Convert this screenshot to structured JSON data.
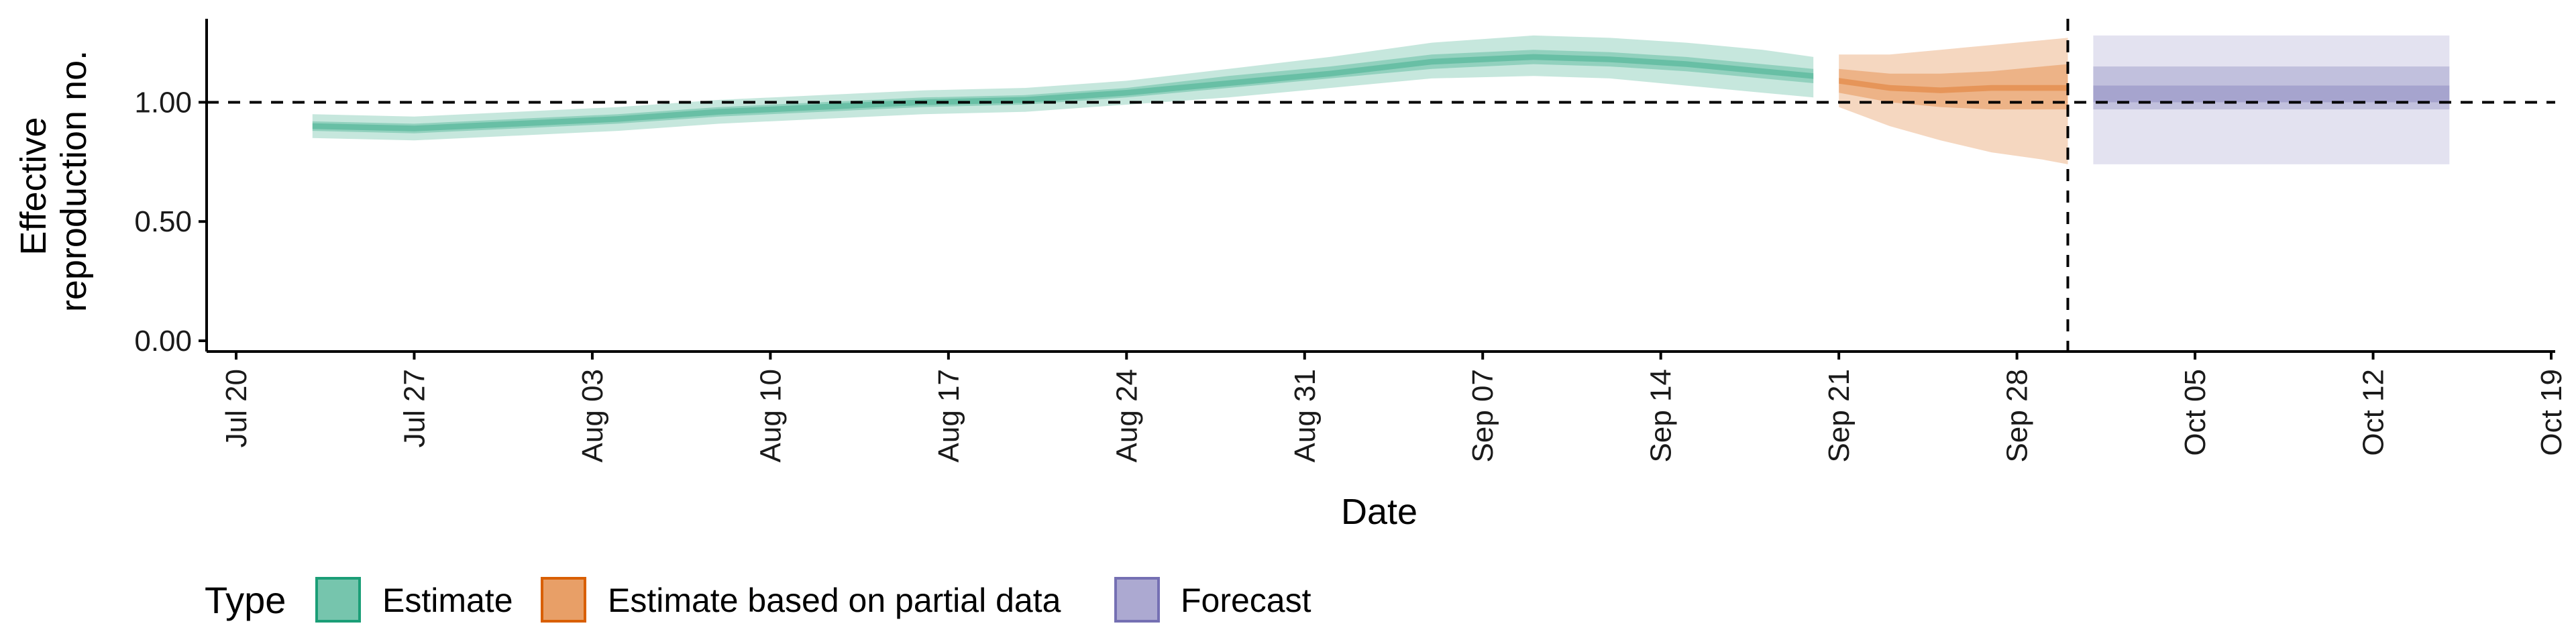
{
  "chart_data": {
    "type": "area",
    "xlabel": "Date",
    "ylabel_lines": [
      "Effective",
      "reproduction no."
    ],
    "x_range": [
      "2020-07-20",
      "2020-10-19"
    ],
    "ylim": [
      0,
      1.35
    ],
    "x_ticks": [
      "Jul 20",
      "Jul 27",
      "Aug 03",
      "Aug 10",
      "Aug 17",
      "Aug 24",
      "Aug 31",
      "Sep 07",
      "Sep 14",
      "Sep 21",
      "Sep 28",
      "Oct 05",
      "Oct 12",
      "Oct 19"
    ],
    "y_ticks": [
      "0.00",
      "0.50",
      "1.00"
    ],
    "y_tick_values": [
      0,
      0.5,
      1.0
    ],
    "reference_lines": {
      "horizontal_y": 1.0,
      "vertical_date": "2020-09-30"
    },
    "legend": {
      "title": "Type",
      "position": "bottom-left",
      "items": [
        {
          "label": "Estimate",
          "color": "#1b9e77"
        },
        {
          "label": "Estimate based on partial data",
          "color": "#d95f02"
        },
        {
          "label": "Forecast",
          "color": "#7570b3"
        }
      ]
    },
    "series": [
      {
        "name": "Estimate",
        "color": "#1b9e77",
        "style": "ribbon",
        "dates": [
          "2020-07-23",
          "2020-07-27",
          "2020-07-31",
          "2020-08-04",
          "2020-08-08",
          "2020-08-12",
          "2020-08-16",
          "2020-08-20",
          "2020-08-24",
          "2020-08-28",
          "2020-09-01",
          "2020-09-05",
          "2020-09-09",
          "2020-09-12",
          "2020-09-15",
          "2020-09-18",
          "2020-09-20"
        ],
        "median": [
          0.9,
          0.89,
          0.91,
          0.93,
          0.96,
          0.98,
          1.0,
          1.01,
          1.04,
          1.08,
          1.12,
          1.17,
          1.19,
          1.18,
          1.16,
          1.13,
          1.11
        ],
        "lower_outer": [
          0.85,
          0.84,
          0.86,
          0.88,
          0.91,
          0.93,
          0.95,
          0.96,
          0.99,
          1.02,
          1.06,
          1.1,
          1.11,
          1.1,
          1.07,
          1.04,
          1.02
        ],
        "upper_outer": [
          0.95,
          0.94,
          0.96,
          0.98,
          1.01,
          1.03,
          1.05,
          1.06,
          1.09,
          1.14,
          1.19,
          1.25,
          1.28,
          1.27,
          1.25,
          1.22,
          1.19
        ],
        "lower_inner": [
          0.88,
          0.87,
          0.89,
          0.91,
          0.94,
          0.96,
          0.98,
          0.99,
          1.02,
          1.06,
          1.1,
          1.14,
          1.16,
          1.15,
          1.13,
          1.1,
          1.08
        ],
        "upper_inner": [
          0.92,
          0.91,
          0.93,
          0.95,
          0.98,
          1.0,
          1.02,
          1.03,
          1.06,
          1.11,
          1.15,
          1.2,
          1.22,
          1.21,
          1.19,
          1.16,
          1.14
        ]
      },
      {
        "name": "Estimate based on partial data",
        "color": "#d95f02",
        "style": "ribbon",
        "dates": [
          "2020-09-21",
          "2020-09-23",
          "2020-09-25",
          "2020-09-27",
          "2020-09-29",
          "2020-09-30"
        ],
        "median": [
          1.09,
          1.06,
          1.05,
          1.06,
          1.06,
          1.06
        ],
        "lower_outer": [
          0.98,
          0.9,
          0.84,
          0.79,
          0.76,
          0.74
        ],
        "upper_outer": [
          1.2,
          1.2,
          1.22,
          1.24,
          1.26,
          1.27
        ],
        "lower_inner": [
          1.04,
          1.0,
          0.98,
          0.97,
          0.97,
          0.97
        ],
        "upper_inner": [
          1.14,
          1.12,
          1.12,
          1.13,
          1.15,
          1.16
        ]
      },
      {
        "name": "Forecast",
        "color": "#7570b3",
        "style": "block",
        "start": "2020-10-01",
        "end": "2020-10-15",
        "median": 1.04,
        "lower_outer": 0.74,
        "upper_outer": 1.28,
        "lower_inner": 0.97,
        "upper_inner": 1.15,
        "lower_center": 1.0,
        "upper_center": 1.07
      }
    ]
  }
}
